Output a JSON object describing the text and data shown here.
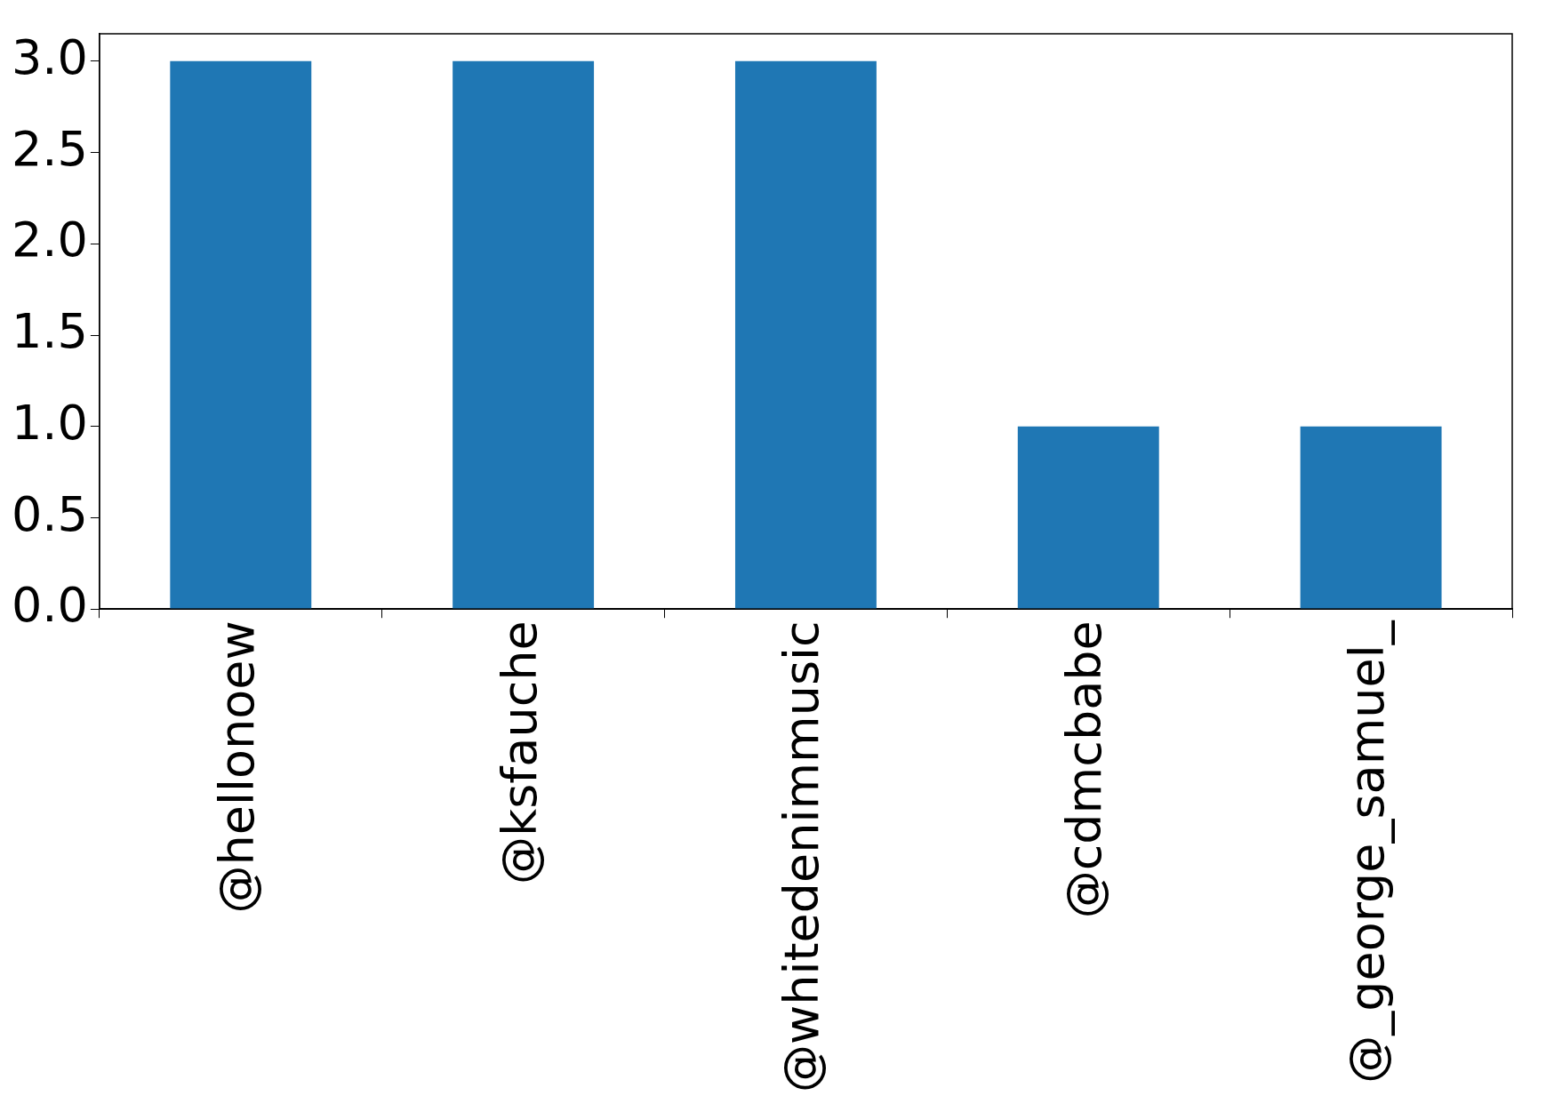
{
  "chart_data": {
    "type": "bar",
    "categories": [
      "@hellonoew",
      "@ksfauche",
      "@whitedenimmusic",
      "@cdmcbabe",
      "@_george_samuel_"
    ],
    "values": [
      3,
      3,
      3,
      1,
      1
    ],
    "color": "#1f77b4",
    "ylim": [
      0,
      3.15
    ],
    "yticks": [
      {
        "value": 0,
        "label": "0.0"
      },
      {
        "value": 0.5,
        "label": "0.5"
      },
      {
        "value": 1,
        "label": "1.0"
      },
      {
        "value": 1.5,
        "label": "1.5"
      },
      {
        "value": 2,
        "label": "2.0"
      },
      {
        "value": 2.5,
        "label": "2.5"
      },
      {
        "value": 3,
        "label": "3.0"
      }
    ]
  }
}
